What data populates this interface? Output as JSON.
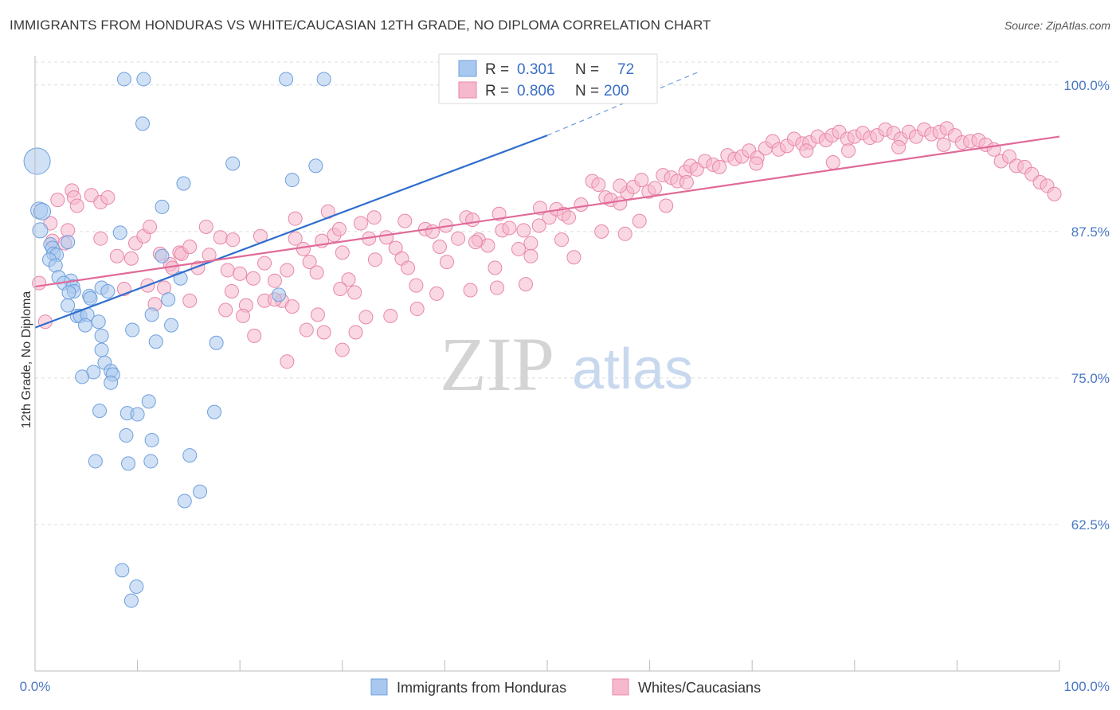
{
  "header": {
    "title": "IMMIGRANTS FROM HONDURAS VS WHITE/CAUCASIAN 12TH GRADE, NO DIPLOMA CORRELATION CHART",
    "source": "Source: ZipAtlas.com"
  },
  "watermark": {
    "zip": "ZIP",
    "atlas": "atlas"
  },
  "stats": {
    "r_label": "R =",
    "n_label": "N =",
    "blue": {
      "r": "0.301",
      "n": "72"
    },
    "pink": {
      "r": "0.806",
      "n": "200"
    }
  },
  "colors": {
    "blue_fill": "#a9c8ef",
    "blue_stroke": "#6e9fdc",
    "blue_line": "#2f6fcc",
    "pink_fill": "#f6b8cc",
    "pink_stroke": "#e887a8",
    "pink_line": "#e06a98",
    "axis_label": "#4a78c4",
    "grid": "#dddddd"
  },
  "chart_data": {
    "type": "scatter",
    "title": "IMMIGRANTS FROM HONDURAS VS WHITE/CAUCASIAN 12TH GRADE, NO DIPLOMA CORRELATION CHART",
    "xlabel": "",
    "ylabel": "12th Grade, No Diploma",
    "xlim": [
      0,
      100
    ],
    "ylim": [
      50,
      102.5
    ],
    "x_tick_labels": [
      "0.0%",
      "100.0%"
    ],
    "y_ticks": [
      62.5,
      75.0,
      87.5,
      100.0
    ],
    "y_tick_labels": [
      "62.5%",
      "75.0%",
      "87.5%",
      "100.0%"
    ],
    "grid": "horizontal dashed",
    "legend_position": "bottom-center",
    "series": [
      {
        "name": "Immigrants from Honduras",
        "r": 0.301,
        "n": 72,
        "trend": {
          "x": [
            0,
            50
          ],
          "y": [
            79.3,
            95.7
          ],
          "dashed_extension_to": [
            65,
            101.2
          ]
        },
        "points": [
          [
            0.2,
            93.5,
            16
          ],
          [
            0.4,
            89.3,
            10
          ],
          [
            0.7,
            89.2,
            10
          ],
          [
            0.5,
            87.6,
            9
          ],
          [
            1.5,
            86.4,
            8
          ],
          [
            1.7,
            86.1,
            8
          ],
          [
            3.2,
            86.6,
            8
          ],
          [
            1.8,
            85.6,
            8
          ],
          [
            2.1,
            85.5,
            8
          ],
          [
            1.4,
            85.1,
            8
          ],
          [
            2.0,
            84.6,
            8
          ],
          [
            2.3,
            83.6,
            8
          ],
          [
            3.5,
            83.3,
            8
          ],
          [
            2.8,
            83.1,
            8
          ],
          [
            3.7,
            82.8,
            8
          ],
          [
            3.8,
            82.4,
            8
          ],
          [
            5.3,
            82.0,
            8
          ],
          [
            5.4,
            81.8,
            8
          ],
          [
            6.5,
            82.7,
            8
          ],
          [
            7.1,
            82.4,
            8
          ],
          [
            3.2,
            81.2,
            8
          ],
          [
            4.1,
            80.3,
            8
          ],
          [
            4.4,
            80.3,
            8
          ],
          [
            5.1,
            80.4,
            8
          ],
          [
            6.2,
            79.8,
            8
          ],
          [
            4.9,
            79.5,
            8
          ],
          [
            6.5,
            78.6,
            8
          ],
          [
            6.5,
            77.4,
            8
          ],
          [
            6.8,
            76.3,
            8
          ],
          [
            7.4,
            75.6,
            8
          ],
          [
            7.6,
            75.3,
            8
          ],
          [
            5.7,
            75.5,
            8
          ],
          [
            4.6,
            75.1,
            8
          ],
          [
            7.4,
            74.6,
            8
          ],
          [
            6.3,
            72.2,
            8
          ],
          [
            9.0,
            72.0,
            8
          ],
          [
            10.0,
            71.9,
            8
          ],
          [
            8.9,
            70.1,
            8
          ],
          [
            11.4,
            69.7,
            8
          ],
          [
            9.1,
            67.7,
            8
          ],
          [
            11.3,
            67.9,
            8
          ],
          [
            5.9,
            67.9,
            8
          ],
          [
            15.1,
            68.4,
            8
          ],
          [
            14.6,
            64.5,
            8
          ],
          [
            16.1,
            65.3,
            8
          ],
          [
            8.5,
            58.6,
            8
          ],
          [
            9.9,
            57.2,
            8
          ],
          [
            9.4,
            56.0,
            8
          ],
          [
            11.1,
            73.0,
            8
          ],
          [
            17.5,
            72.1,
            8
          ],
          [
            17.7,
            78.0,
            8
          ],
          [
            8.7,
            100.5,
            8
          ],
          [
            10.6,
            100.5,
            8
          ],
          [
            24.5,
            100.5,
            8
          ],
          [
            28.2,
            100.5,
            8
          ],
          [
            40.3,
            100.6,
            8
          ],
          [
            10.5,
            96.7,
            8
          ],
          [
            19.3,
            93.3,
            8
          ],
          [
            27.4,
            93.1,
            8
          ],
          [
            14.5,
            91.6,
            8
          ],
          [
            25.1,
            91.9,
            8
          ],
          [
            12.4,
            89.6,
            8
          ],
          [
            8.3,
            87.4,
            8
          ],
          [
            12.4,
            85.4,
            8
          ],
          [
            14.2,
            83.5,
            8
          ],
          [
            13.0,
            81.7,
            8
          ],
          [
            11.4,
            80.4,
            8
          ],
          [
            13.3,
            79.5,
            8
          ],
          [
            11.8,
            78.1,
            8
          ],
          [
            9.5,
            79.1,
            8
          ],
          [
            23.8,
            82.1,
            8
          ],
          [
            3.3,
            82.3,
            8
          ]
        ]
      },
      {
        "name": "Whites/Caucasians",
        "r": 0.806,
        "n": 200,
        "trend": {
          "x": [
            0,
            100
          ],
          "y": [
            82.8,
            95.6
          ]
        },
        "points": [
          [
            0.4,
            83.1
          ],
          [
            1.5,
            88.2
          ],
          [
            1.7,
            86.7
          ],
          [
            2.2,
            90.2
          ],
          [
            3.6,
            91.0
          ],
          [
            3.8,
            90.4
          ],
          [
            4.1,
            89.7
          ],
          [
            5.5,
            90.6
          ],
          [
            6.4,
            90.0
          ],
          [
            7.1,
            90.4
          ],
          [
            8.0,
            85.4
          ],
          [
            8.7,
            82.6
          ],
          [
            9.8,
            86.5
          ],
          [
            10.6,
            87.1
          ],
          [
            11.2,
            87.9
          ],
          [
            11.0,
            82.9
          ],
          [
            12.2,
            85.6
          ],
          [
            12.6,
            82.7
          ],
          [
            13.2,
            84.7
          ],
          [
            14.1,
            85.7
          ],
          [
            14.3,
            85.6
          ],
          [
            15.1,
            86.2
          ],
          [
            15.9,
            84.4
          ],
          [
            17.0,
            85.5
          ],
          [
            18.1,
            87.0
          ],
          [
            18.8,
            84.2
          ],
          [
            19.2,
            82.4
          ],
          [
            20.0,
            83.9
          ],
          [
            20.6,
            81.2
          ],
          [
            21.3,
            83.5
          ],
          [
            22.0,
            87.1
          ],
          [
            22.4,
            84.8
          ],
          [
            23.4,
            83.3
          ],
          [
            24.1,
            81.6
          ],
          [
            24.6,
            84.2
          ],
          [
            25.4,
            86.9
          ],
          [
            26.2,
            86.0
          ],
          [
            26.8,
            84.9
          ],
          [
            27.5,
            84.0
          ],
          [
            28.0,
            86.7
          ],
          [
            28.6,
            89.2
          ],
          [
            29.2,
            87.2
          ],
          [
            30.0,
            85.7
          ],
          [
            30.6,
            83.4
          ],
          [
            31.2,
            82.3
          ],
          [
            31.8,
            88.2
          ],
          [
            32.6,
            86.9
          ],
          [
            33.2,
            85.1
          ],
          [
            34.3,
            87.0
          ],
          [
            35.2,
            86.1
          ],
          [
            35.8,
            85.2
          ],
          [
            36.4,
            84.4
          ],
          [
            37.2,
            82.9
          ],
          [
            38.1,
            87.7
          ],
          [
            38.8,
            87.5
          ],
          [
            39.5,
            86.2
          ],
          [
            40.2,
            84.9
          ],
          [
            41.3,
            86.9
          ],
          [
            42.1,
            88.7
          ],
          [
            42.7,
            88.5
          ],
          [
            43.3,
            86.8
          ],
          [
            44.2,
            86.3
          ],
          [
            44.9,
            84.4
          ],
          [
            45.6,
            87.6
          ],
          [
            46.3,
            87.8
          ],
          [
            47.2,
            86.0
          ],
          [
            47.7,
            87.6
          ],
          [
            48.4,
            86.5
          ],
          [
            49.3,
            89.5
          ],
          [
            50.2,
            88.7
          ],
          [
            50.9,
            89.4
          ],
          [
            51.6,
            89.0
          ],
          [
            52.1,
            88.7
          ],
          [
            53.3,
            89.8
          ],
          [
            54.4,
            91.8
          ],
          [
            55.0,
            91.5
          ],
          [
            55.7,
            90.4
          ],
          [
            56.2,
            90.2
          ],
          [
            57.1,
            89.9
          ],
          [
            57.8,
            90.8
          ],
          [
            58.4,
            91.3
          ],
          [
            59.2,
            91.9
          ],
          [
            59.9,
            90.9
          ],
          [
            60.5,
            91.2
          ],
          [
            61.3,
            92.3
          ],
          [
            62.1,
            92.1
          ],
          [
            62.7,
            91.8
          ],
          [
            63.5,
            92.6
          ],
          [
            64.0,
            93.1
          ],
          [
            64.6,
            92.8
          ],
          [
            65.4,
            93.5
          ],
          [
            66.2,
            93.2
          ],
          [
            66.8,
            93.0
          ],
          [
            67.6,
            94.0
          ],
          [
            68.3,
            93.7
          ],
          [
            69.0,
            93.9
          ],
          [
            69.7,
            94.4
          ],
          [
            70.5,
            93.8
          ],
          [
            71.3,
            94.6
          ],
          [
            72.0,
            95.2
          ],
          [
            72.6,
            94.5
          ],
          [
            73.4,
            94.8
          ],
          [
            74.1,
            95.4
          ],
          [
            74.9,
            95.0
          ],
          [
            75.6,
            95.1
          ],
          [
            76.4,
            95.6
          ],
          [
            77.2,
            95.3
          ],
          [
            77.8,
            95.7
          ],
          [
            78.5,
            96.0
          ],
          [
            79.3,
            95.4
          ],
          [
            80.0,
            95.6
          ],
          [
            80.8,
            95.9
          ],
          [
            81.5,
            95.5
          ],
          [
            82.2,
            95.7
          ],
          [
            83.0,
            96.2
          ],
          [
            83.8,
            95.9
          ],
          [
            84.5,
            95.4
          ],
          [
            85.3,
            96.0
          ],
          [
            86.0,
            95.6
          ],
          [
            86.8,
            96.2
          ],
          [
            87.5,
            95.8
          ],
          [
            88.3,
            96.0
          ],
          [
            89.0,
            96.3
          ],
          [
            89.8,
            95.7
          ],
          [
            90.5,
            95.1
          ],
          [
            91.3,
            95.2
          ],
          [
            92.1,
            95.3
          ],
          [
            92.8,
            94.9
          ],
          [
            93.6,
            94.5
          ],
          [
            94.3,
            93.5
          ],
          [
            95.1,
            93.9
          ],
          [
            95.8,
            93.1
          ],
          [
            96.6,
            93.0
          ],
          [
            97.3,
            92.4
          ],
          [
            98.1,
            91.7
          ],
          [
            98.8,
            91.4
          ],
          [
            99.5,
            90.7
          ],
          [
            61.6,
            89.7
          ],
          [
            63.6,
            91.7
          ],
          [
            70.4,
            93.3
          ],
          [
            75.3,
            94.4
          ],
          [
            77.9,
            93.4
          ],
          [
            79.4,
            94.4
          ],
          [
            84.3,
            94.7
          ],
          [
            88.7,
            94.9
          ],
          [
            57.1,
            91.4
          ],
          [
            49.2,
            88.0
          ],
          [
            45.3,
            89.0
          ],
          [
            40.1,
            88.0
          ],
          [
            36.1,
            88.4
          ],
          [
            33.1,
            88.7
          ],
          [
            29.7,
            87.7
          ],
          [
            25.4,
            88.6
          ],
          [
            19.3,
            86.8
          ],
          [
            16.7,
            87.9
          ],
          [
            13.4,
            84.4
          ],
          [
            9.4,
            85.2
          ],
          [
            6.4,
            86.9
          ],
          [
            3.2,
            87.6
          ],
          [
            2.9,
            86.5
          ],
          [
            1.0,
            79.8
          ],
          [
            20.3,
            80.3
          ],
          [
            22.4,
            81.6
          ],
          [
            29.8,
            82.6
          ],
          [
            28.2,
            78.9
          ],
          [
            31.3,
            78.9
          ],
          [
            37.3,
            80.9
          ],
          [
            42.5,
            82.5
          ],
          [
            45.1,
            82.7
          ],
          [
            51.4,
            86.8
          ],
          [
            11.7,
            81.3
          ],
          [
            15.1,
            81.6
          ],
          [
            18.6,
            80.8
          ],
          [
            23.4,
            81.7
          ],
          [
            25.1,
            81.1
          ],
          [
            27.6,
            80.4
          ],
          [
            32.3,
            80.2
          ],
          [
            34.7,
            80.3
          ],
          [
            39.2,
            82.2
          ],
          [
            47.9,
            83.0
          ],
          [
            24.6,
            76.4
          ],
          [
            30.0,
            77.4
          ],
          [
            26.5,
            79.1
          ],
          [
            21.4,
            78.6
          ],
          [
            43.0,
            86.6
          ],
          [
            52.6,
            85.3
          ],
          [
            55.3,
            87.5
          ],
          [
            57.6,
            87.3
          ],
          [
            59.0,
            88.4
          ],
          [
            48.4,
            85.4
          ]
        ]
      }
    ]
  },
  "legend": {
    "items": [
      {
        "label": "Immigrants from Honduras"
      },
      {
        "label": "Whites/Caucasians"
      }
    ]
  }
}
